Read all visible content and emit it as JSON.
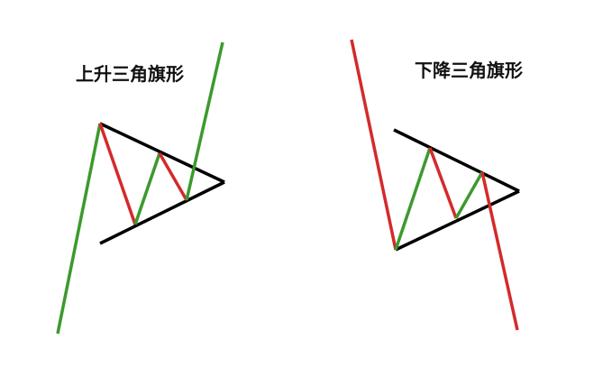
{
  "diagrams": [
    {
      "title": "上升三角旗形"
    },
    {
      "title": "下降三角旗形"
    }
  ],
  "colors": {
    "bullish": "#3c9a2d",
    "bearish": "#d42a2a",
    "boundary": "#000000",
    "background": "#ffffff"
  }
}
